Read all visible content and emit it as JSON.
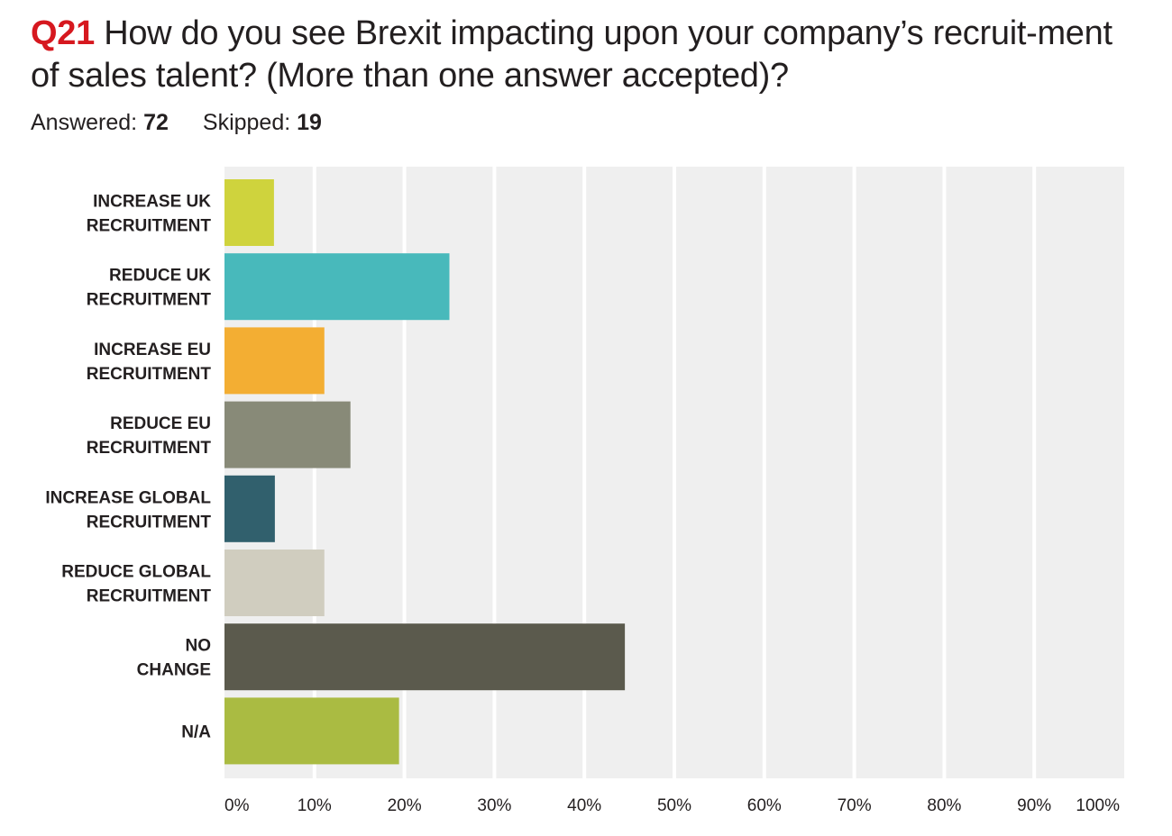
{
  "header": {
    "question_number": "Q21",
    "question_text": "How do you see Brexit impacting upon your company’s recruit-ment of sales talent? (More than one answer accepted)?",
    "answered_label": "Answered:",
    "answered_value": "72",
    "skipped_label": "Skipped:",
    "skipped_value": "19"
  },
  "chart_data": {
    "type": "bar",
    "orientation": "horizontal",
    "categories": [
      [
        "INCREASE UK",
        "RECRUITMENT"
      ],
      [
        "REDUCE UK",
        "RECRUITMENT"
      ],
      [
        "INCREASE EU",
        "RECRUITMENT"
      ],
      [
        "REDUCE EU",
        "RECRUITMENT"
      ],
      [
        "INCREASE GLOBAL",
        "RECRUITMENT"
      ],
      [
        "REDUCE GLOBAL",
        "RECRUITMENT"
      ],
      [
        "NO",
        "CHANGE"
      ],
      [
        "N/A"
      ]
    ],
    "values": [
      5.5,
      25.0,
      11.1,
      14.0,
      5.6,
      11.1,
      44.5,
      19.4
    ],
    "colors": [
      "#cfd33d",
      "#48b9bb",
      "#f3ae33",
      "#888a78",
      "#31606d",
      "#d0cdbf",
      "#5b5a4d",
      "#aabb42"
    ],
    "xlim": [
      0,
      100
    ],
    "x_ticks": [
      "0%",
      "10%",
      "20%",
      "30%",
      "40%",
      "50%",
      "60%",
      "70%",
      "80%",
      "90%",
      "100%"
    ],
    "grid": true,
    "plot_background": "#efefef",
    "grid_color": "#ffffff"
  }
}
